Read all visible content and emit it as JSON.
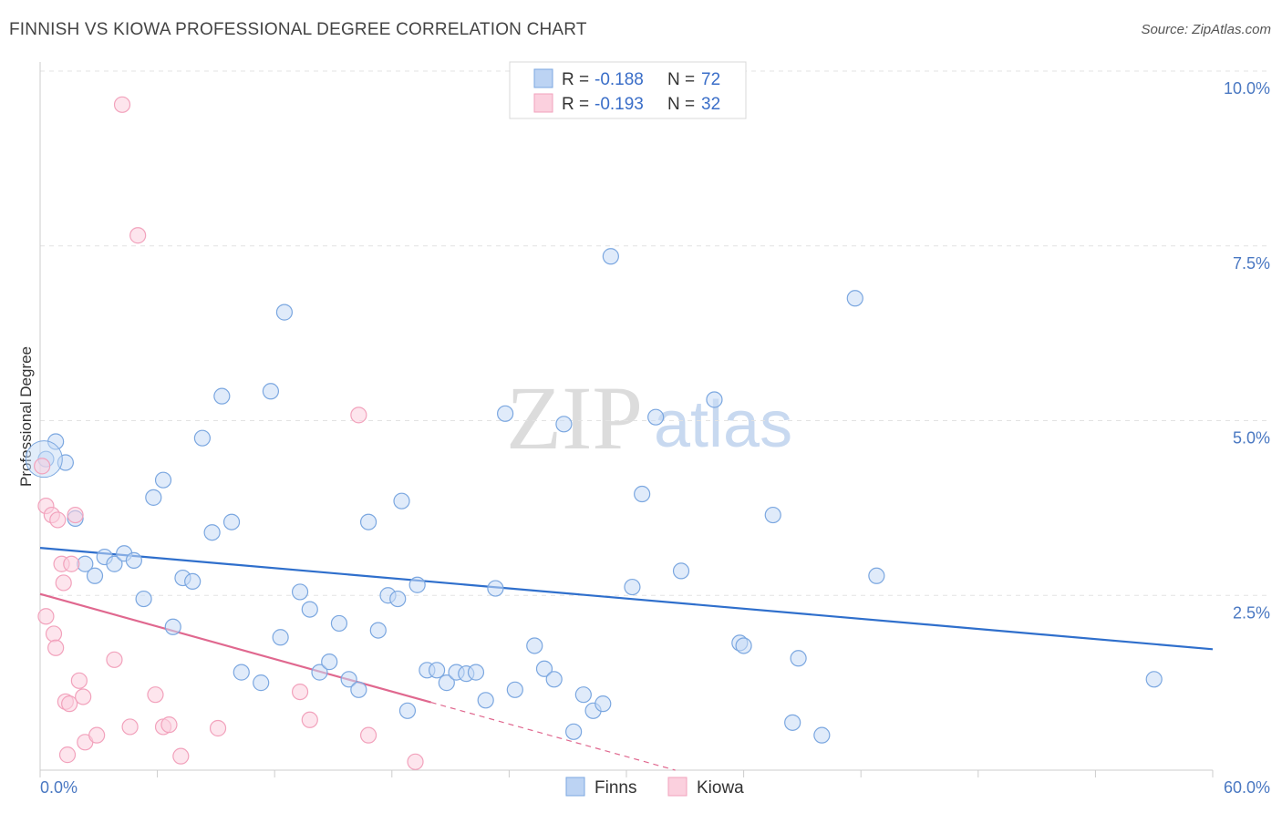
{
  "title": "FINNISH VS KIOWA PROFESSIONAL DEGREE CORRELATION CHART",
  "source": "Source: ZipAtlas.com",
  "chart_data": {
    "type": "scatter",
    "ylabel": "Professional Degree",
    "xlim": [
      0,
      60
    ],
    "ylim": [
      0,
      10
    ],
    "x_tick_labels": [
      "0.0%",
      "60.0%"
    ],
    "y_ticks": [
      2.5,
      5.0,
      7.5,
      10.0
    ],
    "y_tick_labels": [
      "2.5%",
      "5.0%",
      "7.5%",
      "10.0%"
    ],
    "watermark": {
      "zip": "ZIP",
      "atlas": "atlas"
    },
    "legend": [
      {
        "r_label": "R =",
        "r_value": "-0.188",
        "n_label": "N =",
        "n_value": "72"
      },
      {
        "r_label": "R =",
        "r_value": "-0.193",
        "n_label": "N =",
        "n_value": "32"
      }
    ],
    "series": [
      {
        "name": "Finns",
        "color": "#7ba7e0",
        "line_color": "#2f6fcc",
        "trend": {
          "x0": 0,
          "y0": 3.18,
          "x1": 60,
          "y1": 1.73
        },
        "points": [
          [
            0.3,
            4.45
          ],
          [
            0.8,
            4.7
          ],
          [
            1.3,
            4.4
          ],
          [
            1.8,
            3.6
          ],
          [
            2.3,
            2.95
          ],
          [
            2.8,
            2.78
          ],
          [
            3.3,
            3.05
          ],
          [
            3.8,
            2.95
          ],
          [
            4.3,
            3.1
          ],
          [
            4.8,
            3.0
          ],
          [
            5.3,
            2.45
          ],
          [
            5.8,
            3.9
          ],
          [
            6.3,
            4.15
          ],
          [
            6.8,
            2.05
          ],
          [
            7.3,
            2.75
          ],
          [
            7.8,
            2.7
          ],
          [
            8.3,
            4.75
          ],
          [
            8.8,
            3.4
          ],
          [
            9.3,
            5.35
          ],
          [
            9.8,
            3.55
          ],
          [
            10.3,
            1.4
          ],
          [
            11.3,
            1.25
          ],
          [
            11.8,
            5.42
          ],
          [
            12.3,
            1.9
          ],
          [
            12.5,
            6.55
          ],
          [
            13.3,
            2.55
          ],
          [
            13.8,
            2.3
          ],
          [
            14.3,
            1.4
          ],
          [
            14.8,
            1.55
          ],
          [
            15.3,
            2.1
          ],
          [
            15.8,
            1.3
          ],
          [
            16.3,
            1.15
          ],
          [
            16.8,
            3.55
          ],
          [
            17.3,
            2.0
          ],
          [
            17.8,
            2.5
          ],
          [
            18.3,
            2.45
          ],
          [
            18.5,
            3.85
          ],
          [
            18.8,
            0.85
          ],
          [
            19.3,
            2.65
          ],
          [
            19.8,
            1.43
          ],
          [
            20.3,
            1.43
          ],
          [
            20.8,
            1.25
          ],
          [
            21.3,
            1.4
          ],
          [
            21.8,
            1.38
          ],
          [
            22.3,
            1.4
          ],
          [
            22.8,
            1.0
          ],
          [
            23.3,
            2.6
          ],
          [
            23.8,
            5.1
          ],
          [
            24.3,
            1.15
          ],
          [
            25.3,
            1.78
          ],
          [
            25.8,
            1.45
          ],
          [
            26.3,
            1.3
          ],
          [
            26.8,
            4.95
          ],
          [
            27.3,
            0.55
          ],
          [
            27.8,
            1.08
          ],
          [
            28.3,
            0.85
          ],
          [
            28.8,
            0.95
          ],
          [
            29.2,
            7.35
          ],
          [
            30.3,
            2.62
          ],
          [
            30.8,
            3.95
          ],
          [
            31.5,
            5.05
          ],
          [
            32.8,
            2.85
          ],
          [
            34.5,
            5.3
          ],
          [
            35.8,
            1.82
          ],
          [
            36.0,
            1.78
          ],
          [
            37.5,
            3.65
          ],
          [
            38.5,
            0.68
          ],
          [
            38.8,
            1.6
          ],
          [
            40.0,
            0.5
          ],
          [
            41.7,
            6.75
          ],
          [
            42.8,
            2.78
          ],
          [
            57.0,
            1.3
          ]
        ]
      },
      {
        "name": "Kiowa",
        "color": "#f2a2bc",
        "line_color": "#e0688f",
        "trend": {
          "x0": 0,
          "y0": 2.52,
          "x1": 20,
          "y1": 0.97
        },
        "trend_dash": {
          "x0": 20,
          "y0": 0.97,
          "x1": 32.5,
          "y1": 0.0
        },
        "points": [
          [
            0.1,
            4.35
          ],
          [
            0.3,
            3.78
          ],
          [
            0.3,
            2.2
          ],
          [
            0.6,
            3.65
          ],
          [
            0.7,
            1.95
          ],
          [
            0.8,
            1.75
          ],
          [
            0.9,
            3.58
          ],
          [
            1.1,
            2.95
          ],
          [
            1.2,
            2.68
          ],
          [
            1.3,
            0.98
          ],
          [
            1.4,
            0.22
          ],
          [
            1.5,
            0.95
          ],
          [
            1.6,
            2.95
          ],
          [
            1.8,
            3.65
          ],
          [
            2.0,
            1.28
          ],
          [
            2.2,
            1.05
          ],
          [
            2.3,
            0.4
          ],
          [
            2.9,
            0.5
          ],
          [
            3.8,
            1.58
          ],
          [
            4.2,
            9.52
          ],
          [
            4.6,
            0.62
          ],
          [
            5.0,
            7.65
          ],
          [
            5.9,
            1.08
          ],
          [
            6.3,
            0.62
          ],
          [
            6.6,
            0.65
          ],
          [
            7.2,
            0.2
          ],
          [
            9.1,
            0.6
          ],
          [
            13.3,
            1.12
          ],
          [
            13.8,
            0.72
          ],
          [
            16.3,
            5.08
          ],
          [
            16.8,
            0.5
          ],
          [
            19.2,
            0.12
          ]
        ]
      }
    ]
  }
}
